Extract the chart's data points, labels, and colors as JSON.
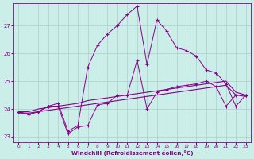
{
  "xlabel": "Windchill (Refroidissement éolien,°C)",
  "background_color": "#cceee8",
  "grid_color": "#aacccc",
  "line_color": "#880088",
  "xlim": [
    -0.5,
    23.5
  ],
  "ylim": [
    22.8,
    27.8
  ],
  "yticks": [
    23,
    24,
    25,
    26,
    27
  ],
  "xticks": [
    0,
    1,
    2,
    3,
    4,
    5,
    6,
    7,
    8,
    9,
    10,
    11,
    12,
    13,
    14,
    15,
    16,
    17,
    18,
    19,
    20,
    21,
    22,
    23
  ],
  "line_upper": [
    23.9,
    23.8,
    23.9,
    24.1,
    24.2,
    23.2,
    23.4,
    25.5,
    26.3,
    26.7,
    27.0,
    27.4,
    27.7,
    25.6,
    27.2,
    26.8,
    26.2,
    26.1,
    25.9,
    25.4,
    25.3,
    24.9,
    24.1,
    24.5
  ],
  "line_mid": [
    23.9,
    23.8,
    23.9,
    24.1,
    24.1,
    23.1,
    23.35,
    23.4,
    24.15,
    24.2,
    24.5,
    24.5,
    25.75,
    24.0,
    24.6,
    24.7,
    24.8,
    24.85,
    24.9,
    25.0,
    24.8,
    24.1,
    24.5,
    24.5
  ],
  "line_trend1": [
    23.9,
    23.9,
    24.0,
    24.05,
    24.1,
    24.15,
    24.2,
    24.3,
    24.35,
    24.4,
    24.45,
    24.5,
    24.55,
    24.6,
    24.65,
    24.7,
    24.75,
    24.8,
    24.85,
    24.9,
    24.95,
    25.0,
    24.6,
    24.5
  ],
  "line_trend2": [
    23.85,
    23.85,
    23.9,
    23.95,
    24.0,
    24.05,
    24.1,
    24.15,
    24.2,
    24.25,
    24.3,
    24.35,
    24.4,
    24.45,
    24.5,
    24.55,
    24.6,
    24.65,
    24.7,
    24.75,
    24.8,
    24.85,
    24.5,
    24.45
  ]
}
